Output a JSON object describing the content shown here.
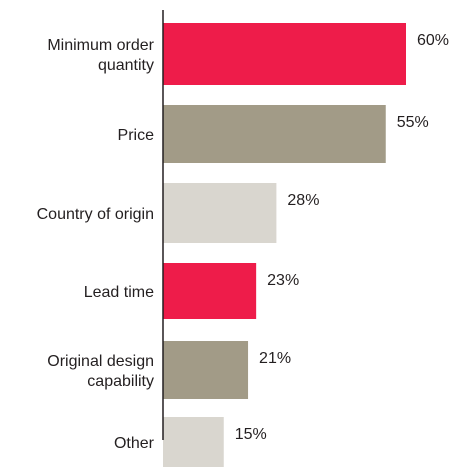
{
  "chart_data": {
    "type": "bar",
    "orientation": "horizontal",
    "title": "",
    "xlabel": "",
    "ylabel": "",
    "categories": [
      [
        "Minimum order",
        "quantity"
      ],
      [
        "Price"
      ],
      [
        "Country of origin"
      ],
      [
        "Lead time"
      ],
      [
        "Original design",
        "capability"
      ],
      [
        "Other"
      ]
    ],
    "values": [
      60,
      55,
      28,
      23,
      21,
      15
    ],
    "value_labels": [
      "60%",
      "55%",
      "28%",
      "23%",
      "21%",
      "15%"
    ],
    "bar_colors": [
      "#ee1c4a",
      "#a29b87",
      "#d9d6cf",
      "#ee1c4a",
      "#a29b87",
      "#d9d6cf"
    ],
    "xlim": [
      0,
      60
    ],
    "grid": false,
    "legend": "none"
  }
}
